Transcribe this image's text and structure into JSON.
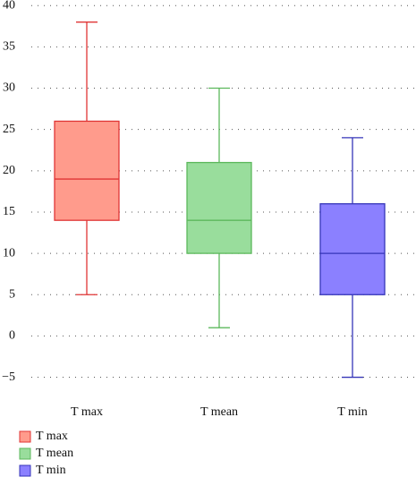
{
  "chart_data": {
    "type": "box",
    "categories": [
      "T max",
      "T mean",
      "T min"
    ],
    "series": [
      {
        "name": "T max",
        "color": "#e03535",
        "fill": "#ff9b8c",
        "low": 5,
        "q1": 14,
        "median": 19,
        "q3": 26,
        "high": 38
      },
      {
        "name": "T mean",
        "color": "#5cb85c",
        "fill": "#99dd9c",
        "low": 1,
        "q1": 10,
        "median": 14,
        "q3": 21,
        "high": 30
      },
      {
        "name": "T min",
        "color": "#3535b8",
        "fill": "#8b80ff",
        "low": -5,
        "q1": 5,
        "median": 10,
        "q3": 16,
        "high": 24
      }
    ],
    "ylim": [
      -7,
      41
    ],
    "yticks": [
      {
        "value": -5,
        "label": "−5"
      },
      0,
      5,
      10,
      15,
      20,
      25,
      30,
      35,
      40
    ],
    "grid": true
  }
}
